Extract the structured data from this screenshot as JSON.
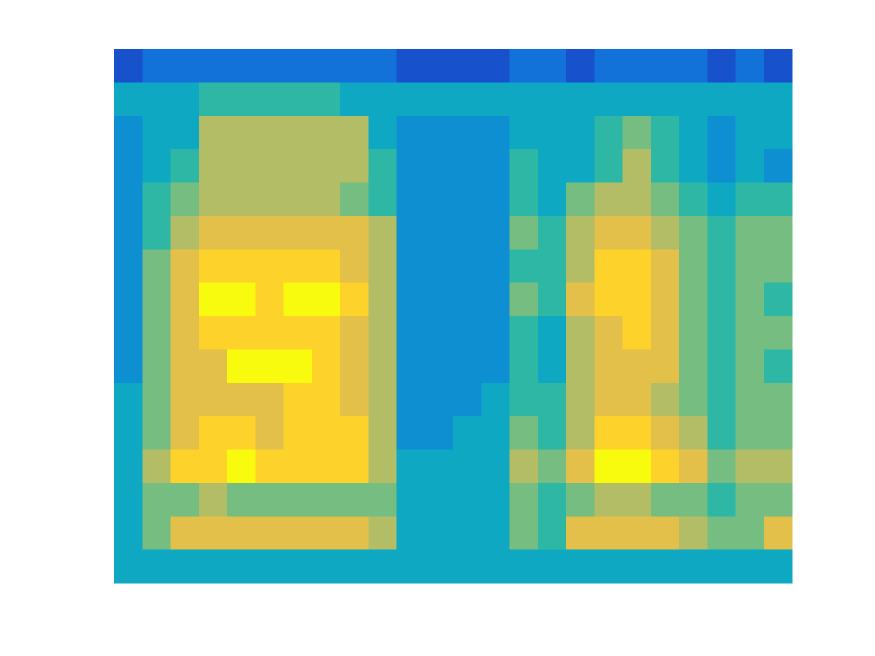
{
  "chart_data": {
    "type": "heatmap",
    "zlim": [
      0,
      10
    ],
    "colormap": [
      "#352a87",
      "#0f5cdd",
      "#1481d6",
      "#06a4ca",
      "#2eb7a4",
      "#87bf77",
      "#d1bb59",
      "#fec832",
      "#f9fb0e"
    ],
    "values": [
      [
        1,
        2,
        2,
        2,
        2,
        2,
        2,
        2,
        2,
        2,
        1,
        1,
        1,
        1,
        2,
        2,
        1,
        2,
        2,
        2,
        2,
        1,
        2,
        1
      ],
      [
        4,
        4,
        4,
        5,
        5,
        5,
        5,
        5,
        4,
        4,
        4,
        4,
        4,
        4,
        4,
        4,
        4,
        4,
        4,
        4,
        4,
        4,
        4,
        4
      ],
      [
        3,
        4,
        4,
        7,
        7,
        7,
        7,
        7,
        7,
        4,
        3,
        3,
        3,
        3,
        4,
        4,
        4,
        5,
        6,
        5,
        4,
        3,
        4,
        4
      ],
      [
        3,
        4,
        5,
        7,
        7,
        7,
        7,
        7,
        7,
        5,
        3,
        3,
        3,
        3,
        5,
        4,
        4,
        5,
        7,
        5,
        4,
        3,
        4,
        3
      ],
      [
        3,
        5,
        6,
        7,
        7,
        7,
        7,
        7,
        6,
        5,
        3,
        3,
        3,
        3,
        5,
        4,
        6,
        7,
        7,
        6,
        5,
        4,
        5,
        5
      ],
      [
        3,
        5,
        7,
        8,
        8,
        8,
        8,
        8,
        8,
        7,
        3,
        3,
        3,
        3,
        6,
        5,
        7,
        8,
        8,
        7,
        6,
        5,
        6,
        6
      ],
      [
        3,
        6,
        8,
        9,
        9,
        9,
        9,
        9,
        8,
        7,
        3,
        3,
        3,
        3,
        5,
        5,
        7,
        9,
        9,
        8,
        6,
        5,
        6,
        6
      ],
      [
        3,
        6,
        8,
        10,
        10,
        9,
        10,
        10,
        9,
        7,
        3,
        3,
        3,
        3,
        6,
        5,
        8,
        9,
        9,
        8,
        6,
        5,
        6,
        5
      ],
      [
        3,
        6,
        8,
        9,
        9,
        9,
        9,
        9,
        8,
        7,
        3,
        3,
        3,
        3,
        5,
        4,
        7,
        8,
        9,
        8,
        6,
        5,
        6,
        6
      ],
      [
        3,
        6,
        8,
        8,
        10,
        10,
        10,
        9,
        8,
        7,
        3,
        3,
        3,
        3,
        5,
        4,
        7,
        8,
        8,
        8,
        6,
        5,
        6,
        5
      ],
      [
        4,
        6,
        8,
        8,
        8,
        8,
        9,
        9,
        8,
        7,
        3,
        3,
        3,
        4,
        5,
        5,
        7,
        8,
        8,
        7,
        6,
        5,
        6,
        6
      ],
      [
        4,
        6,
        8,
        9,
        9,
        8,
        9,
        9,
        9,
        7,
        3,
        3,
        4,
        4,
        6,
        5,
        7,
        9,
        9,
        8,
        7,
        5,
        6,
        6
      ],
      [
        4,
        7,
        9,
        9,
        10,
        9,
        9,
        9,
        9,
        7,
        4,
        4,
        4,
        4,
        7,
        6,
        8,
        10,
        10,
        9,
        8,
        6,
        7,
        7
      ],
      [
        4,
        6,
        6,
        7,
        6,
        6,
        6,
        6,
        6,
        6,
        4,
        4,
        4,
        4,
        6,
        5,
        6,
        7,
        7,
        6,
        6,
        5,
        6,
        6
      ],
      [
        4,
        6,
        8,
        8,
        8,
        8,
        8,
        8,
        8,
        7,
        4,
        4,
        4,
        4,
        6,
        5,
        8,
        8,
        8,
        8,
        7,
        6,
        6,
        8
      ],
      [
        4,
        4,
        4,
        4,
        4,
        4,
        4,
        4,
        4,
        4,
        4,
        4,
        4,
        4,
        4,
        4,
        4,
        4,
        4,
        4,
        4,
        4,
        4,
        4
      ]
    ]
  }
}
